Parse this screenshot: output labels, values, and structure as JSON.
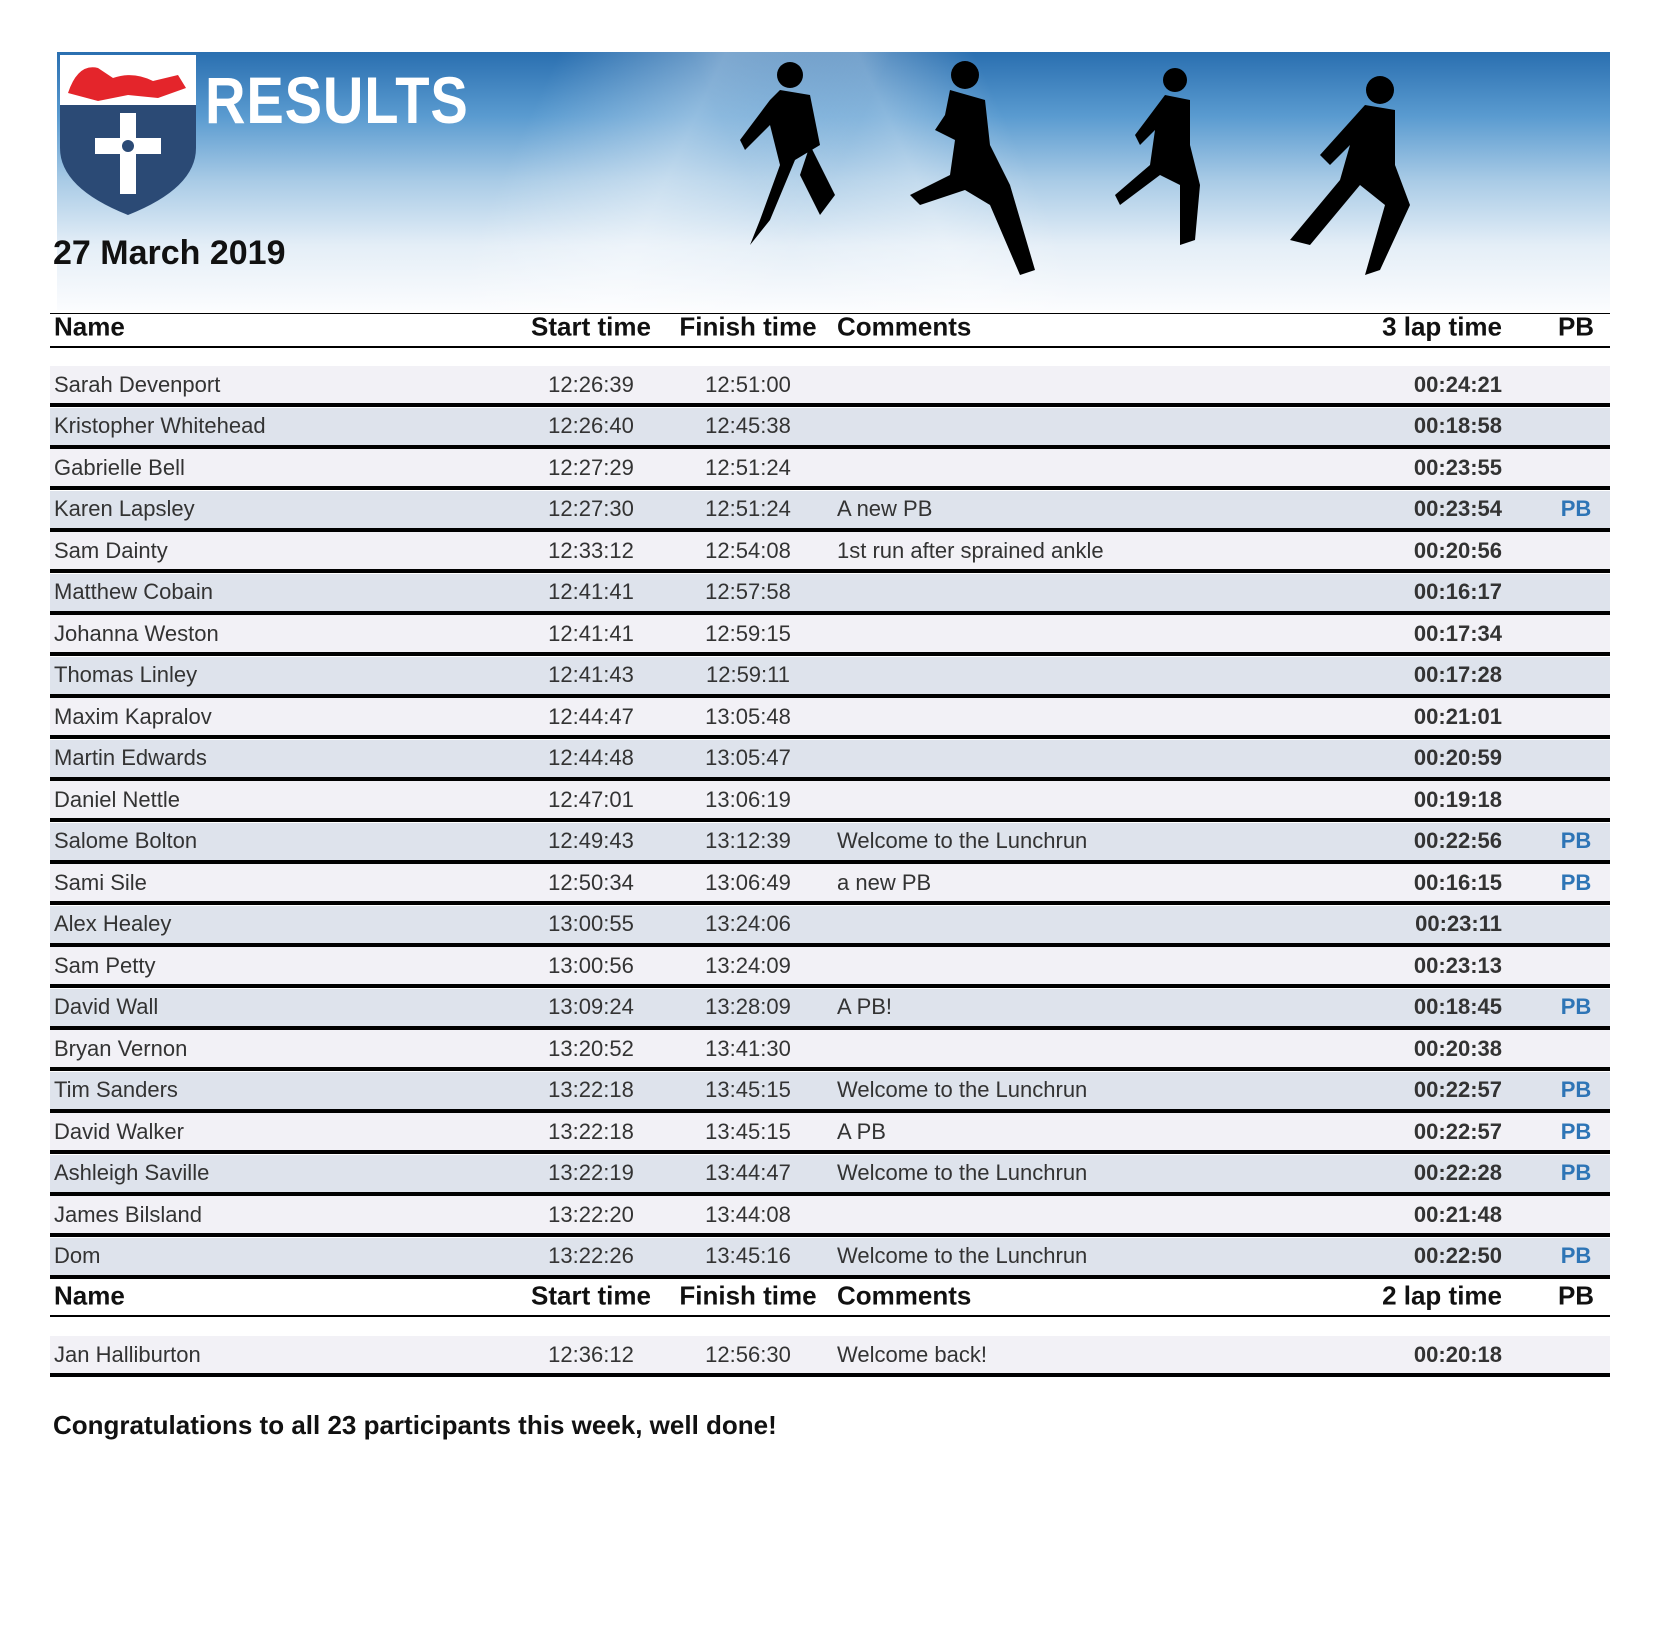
{
  "header": {
    "title": "RESULTS",
    "date": "27 March 2019"
  },
  "table1": {
    "columns": {
      "name": "Name",
      "start": "Start time",
      "finish": "Finish time",
      "comments": "Comments",
      "lap": "3 lap time",
      "pb": "PB"
    },
    "rows": [
      {
        "name": "Sarah Devenport",
        "start": "12:26:39",
        "finish": "12:51:00",
        "comments": "",
        "lap": "00:24:21",
        "pb": ""
      },
      {
        "name": "Kristopher Whitehead",
        "start": "12:26:40",
        "finish": "12:45:38",
        "comments": "",
        "lap": "00:18:58",
        "pb": ""
      },
      {
        "name": "Gabrielle Bell",
        "start": "12:27:29",
        "finish": "12:51:24",
        "comments": "",
        "lap": "00:23:55",
        "pb": ""
      },
      {
        "name": "Karen Lapsley",
        "start": "12:27:30",
        "finish": "12:51:24",
        "comments": "A new PB",
        "lap": "00:23:54",
        "pb": "PB"
      },
      {
        "name": "Sam Dainty",
        "start": "12:33:12",
        "finish": "12:54:08",
        "comments": "1st run after sprained ankle",
        "lap": "00:20:56",
        "pb": ""
      },
      {
        "name": "Matthew Cobain",
        "start": "12:41:41",
        "finish": "12:57:58",
        "comments": "",
        "lap": "00:16:17",
        "pb": ""
      },
      {
        "name": "Johanna Weston",
        "start": "12:41:41",
        "finish": "12:59:15",
        "comments": "",
        "lap": "00:17:34",
        "pb": ""
      },
      {
        "name": "Thomas Linley",
        "start": "12:41:43",
        "finish": "12:59:11",
        "comments": "",
        "lap": "00:17:28",
        "pb": ""
      },
      {
        "name": "Maxim Kapralov",
        "start": "12:44:47",
        "finish": "13:05:48",
        "comments": "",
        "lap": "00:21:01",
        "pb": ""
      },
      {
        "name": "Martin Edwards",
        "start": "12:44:48",
        "finish": "13:05:47",
        "comments": "",
        "lap": "00:20:59",
        "pb": ""
      },
      {
        "name": "Daniel Nettle",
        "start": "12:47:01",
        "finish": "13:06:19",
        "comments": "",
        "lap": "00:19:18",
        "pb": ""
      },
      {
        "name": "Salome Bolton",
        "start": "12:49:43",
        "finish": "13:12:39",
        "comments": "Welcome to the Lunchrun",
        "lap": "00:22:56",
        "pb": "PB"
      },
      {
        "name": "Sami Sile",
        "start": "12:50:34",
        "finish": "13:06:49",
        "comments": "a new PB",
        "lap": "00:16:15",
        "pb": "PB"
      },
      {
        "name": "Alex Healey",
        "start": "13:00:55",
        "finish": "13:24:06",
        "comments": "",
        "lap": "00:23:11",
        "pb": ""
      },
      {
        "name": "Sam Petty",
        "start": "13:00:56",
        "finish": "13:24:09",
        "comments": "",
        "lap": "00:23:13",
        "pb": ""
      },
      {
        "name": "David Wall",
        "start": "13:09:24",
        "finish": "13:28:09",
        "comments": "A PB!",
        "lap": "00:18:45",
        "pb": "PB"
      },
      {
        "name": "Bryan Vernon",
        "start": "13:20:52",
        "finish": "13:41:30",
        "comments": "",
        "lap": "00:20:38",
        "pb": ""
      },
      {
        "name": "Tim Sanders",
        "start": "13:22:18",
        "finish": "13:45:15",
        "comments": "Welcome to the Lunchrun",
        "lap": "00:22:57",
        "pb": "PB"
      },
      {
        "name": "David Walker",
        "start": "13:22:18",
        "finish": "13:45:15",
        "comments": "A PB",
        "lap": "00:22:57",
        "pb": "PB"
      },
      {
        "name": "Ashleigh Saville",
        "start": "13:22:19",
        "finish": "13:44:47",
        "comments": "Welcome to the Lunchrun",
        "lap": "00:22:28",
        "pb": "PB"
      },
      {
        "name": "James Bilsland",
        "start": "13:22:20",
        "finish": "13:44:08",
        "comments": "",
        "lap": "00:21:48",
        "pb": ""
      },
      {
        "name": "Dom",
        "start": "13:22:26",
        "finish": "13:45:16",
        "comments": "Welcome to the Lunchrun",
        "lap": "00:22:50",
        "pb": "PB"
      }
    ]
  },
  "table2": {
    "columns": {
      "name": "Name",
      "start": "Start time",
      "finish": "Finish time",
      "comments": "Comments",
      "lap": "2 lap time",
      "pb": "PB"
    },
    "rows": [
      {
        "name": "Jan Halliburton",
        "start": "12:36:12",
        "finish": "12:56:30",
        "comments": "Welcome back!",
        "lap": "00:20:18",
        "pb": ""
      }
    ]
  },
  "footer": {
    "congrats": "Congratulations to all 23 participants this week, well done!"
  },
  "colors": {
    "pb": "#2e75b6",
    "row_light": "#f2f1f6",
    "row_blue": "#dee3ec",
    "crest_blue": "#2b4a75",
    "crest_red": "#e4252b"
  }
}
